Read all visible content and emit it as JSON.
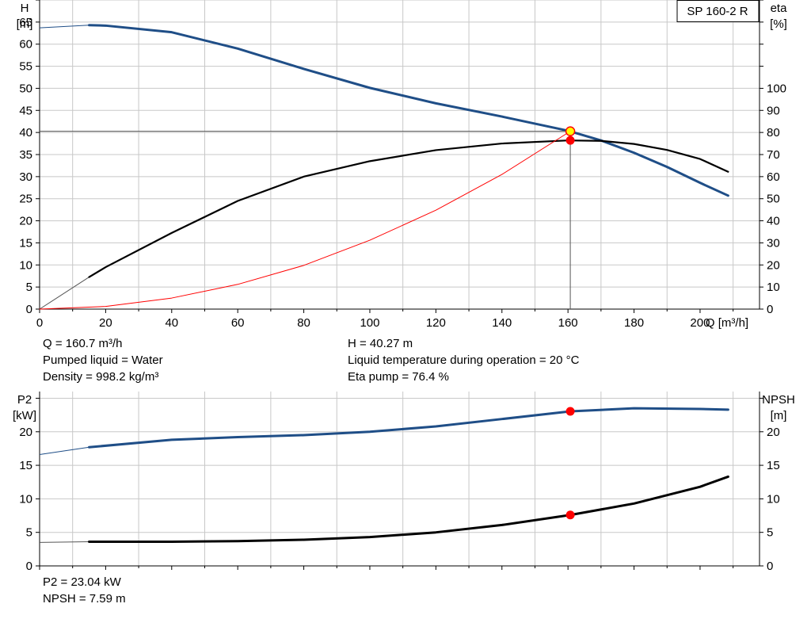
{
  "chart_data": [
    {
      "type": "line",
      "model_label": "SP 160-2 R",
      "xlabel": "Q [m³/h]",
      "x_ticks": [
        0,
        20,
        40,
        60,
        80,
        100,
        120,
        140,
        160,
        180,
        200
      ],
      "xlim": [
        0,
        218
      ],
      "left_axis": {
        "label_line1": "H",
        "label_line2": "[m]",
        "ylim": [
          0,
          70
        ],
        "ticks": [
          0,
          5,
          10,
          15,
          20,
          25,
          30,
          35,
          40,
          45,
          50,
          55,
          60,
          65
        ]
      },
      "right_axis": {
        "label_line1": "eta",
        "label_line2": "[%]",
        "ylim": [
          0,
          140
        ],
        "ticks": [
          0,
          10,
          20,
          30,
          40,
          50,
          60,
          70,
          80,
          90,
          100
        ]
      },
      "series": [
        {
          "key": "H",
          "axis": "left",
          "color": "#1f4e87",
          "x": [
            15,
            20,
            40,
            60,
            80,
            100,
            120,
            140,
            160,
            170,
            180,
            190,
            200,
            208.5
          ],
          "y": [
            64.3,
            64.2,
            62.7,
            59,
            54.4,
            50.1,
            46.6,
            43.6,
            40.4,
            38.2,
            35.4,
            32.2,
            28.6,
            25.7
          ],
          "ext_x": [
            0,
            15
          ],
          "ext_y": [
            63.7,
            64.3
          ]
        },
        {
          "key": "eta",
          "axis": "right",
          "color": "#000000",
          "x": [
            15,
            20,
            40,
            60,
            80,
            100,
            120,
            140,
            160,
            170,
            180,
            190,
            200,
            208.5
          ],
          "y": [
            14.5,
            19,
            34.5,
            49,
            60,
            67,
            72,
            75,
            76.4,
            76.2,
            74.8,
            72.1,
            68,
            62.2
          ],
          "ext_x": [
            0,
            15
          ],
          "ext_y": [
            0,
            14.5
          ]
        },
        {
          "key": "system-curve",
          "axis": "left",
          "color": "#ff0000",
          "x": [
            0,
            20,
            40,
            60,
            80,
            100,
            120,
            140,
            160.7
          ],
          "y": [
            0,
            0.6,
            2.5,
            5.6,
            9.9,
            15.6,
            22.4,
            30.5,
            40.27
          ]
        }
      ],
      "operating_point": {
        "x": 160.7,
        "H": 40.27,
        "eta": 76.4
      }
    },
    {
      "type": "line",
      "xlim": [
        0,
        218
      ],
      "left_axis": {
        "label_line1": "P2",
        "label_line2": "[kW]",
        "ylim": [
          0,
          26
        ],
        "ticks": [
          0,
          5,
          10,
          15,
          20
        ]
      },
      "right_axis": {
        "label_line1": "NPSH",
        "label_line2": "[m]",
        "ylim": [
          0,
          26
        ],
        "ticks": [
          0,
          5,
          10,
          15,
          20
        ]
      },
      "series": [
        {
          "key": "P2",
          "axis": "left",
          "color": "#1f4e87",
          "x": [
            15,
            40,
            60,
            80,
            100,
            120,
            140,
            160.7,
            180,
            200,
            208.5
          ],
          "y": [
            17.7,
            18.8,
            19.2,
            19.5,
            20,
            20.8,
            21.9,
            23.04,
            23.5,
            23.4,
            23.3
          ],
          "ext_x": [
            0,
            15
          ],
          "ext_y": [
            16.6,
            17.7
          ]
        },
        {
          "key": "NPSH",
          "axis": "right",
          "color": "#000000",
          "x": [
            15,
            40,
            60,
            80,
            100,
            120,
            140,
            160.7,
            180,
            200,
            208.5
          ],
          "y": [
            3.6,
            3.6,
            3.7,
            3.9,
            4.3,
            5,
            6.1,
            7.59,
            9.3,
            11.8,
            13.3
          ],
          "ext_x": [
            0,
            15
          ],
          "ext_y": [
            3.5,
            3.6
          ]
        }
      ],
      "operating_point": {
        "x": 160.7,
        "P2": 23.04,
        "NPSH": 7.59
      }
    }
  ],
  "info_top": {
    "q": "Q = 160.7 m³/h",
    "pumped_liquid": "Pumped liquid = Water",
    "density": "Density = 998.2 kg/m³",
    "h": "H = 40.27 m",
    "temperature": "Liquid temperature during operation = 20 °C",
    "eta_pump": "Eta pump = 76.4 %"
  },
  "info_bottom": {
    "p2": "P2 = 23.04 kW",
    "npsh": "NPSH = 7.59 m"
  },
  "colors": {
    "grid": "#c8c8c8",
    "axis": "#000000",
    "blue": "#1f4e87",
    "red": "#ff0000",
    "op_fill": "#ffff00"
  }
}
